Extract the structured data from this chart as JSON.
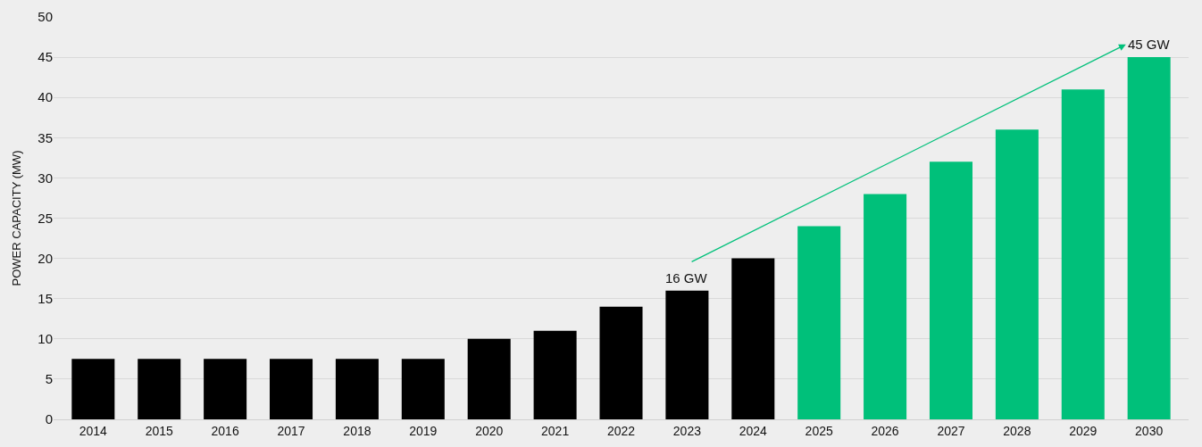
{
  "chart_data": {
    "type": "bar",
    "ylabel": "POWER CAPACITY (MW)",
    "categories": [
      "2014",
      "2015",
      "2016",
      "2017",
      "2018",
      "2019",
      "2020",
      "2021",
      "2022",
      "2023",
      "2024",
      "2025",
      "2026",
      "2027",
      "2028",
      "2029",
      "2030"
    ],
    "values": [
      7.5,
      7.5,
      7.5,
      7.5,
      7.5,
      7.5,
      10,
      11,
      14,
      16,
      20,
      24,
      28,
      32,
      36,
      41,
      45
    ],
    "colors": [
      "#000000",
      "#000000",
      "#000000",
      "#000000",
      "#000000",
      "#000000",
      "#000000",
      "#000000",
      "#000000",
      "#000000",
      "#000000",
      "#00c07a",
      "#00c07a",
      "#00c07a",
      "#00c07a",
      "#00c07a",
      "#00c07a"
    ],
    "ylim": [
      0,
      50
    ],
    "yticks": [
      0,
      5,
      10,
      15,
      20,
      25,
      30,
      35,
      40,
      45,
      50
    ],
    "grid": "y",
    "annotations": [
      {
        "text": "16 GW",
        "x": "2023",
        "y": 16
      },
      {
        "text": "45 GW",
        "x": "2030",
        "y": 45
      }
    ]
  }
}
